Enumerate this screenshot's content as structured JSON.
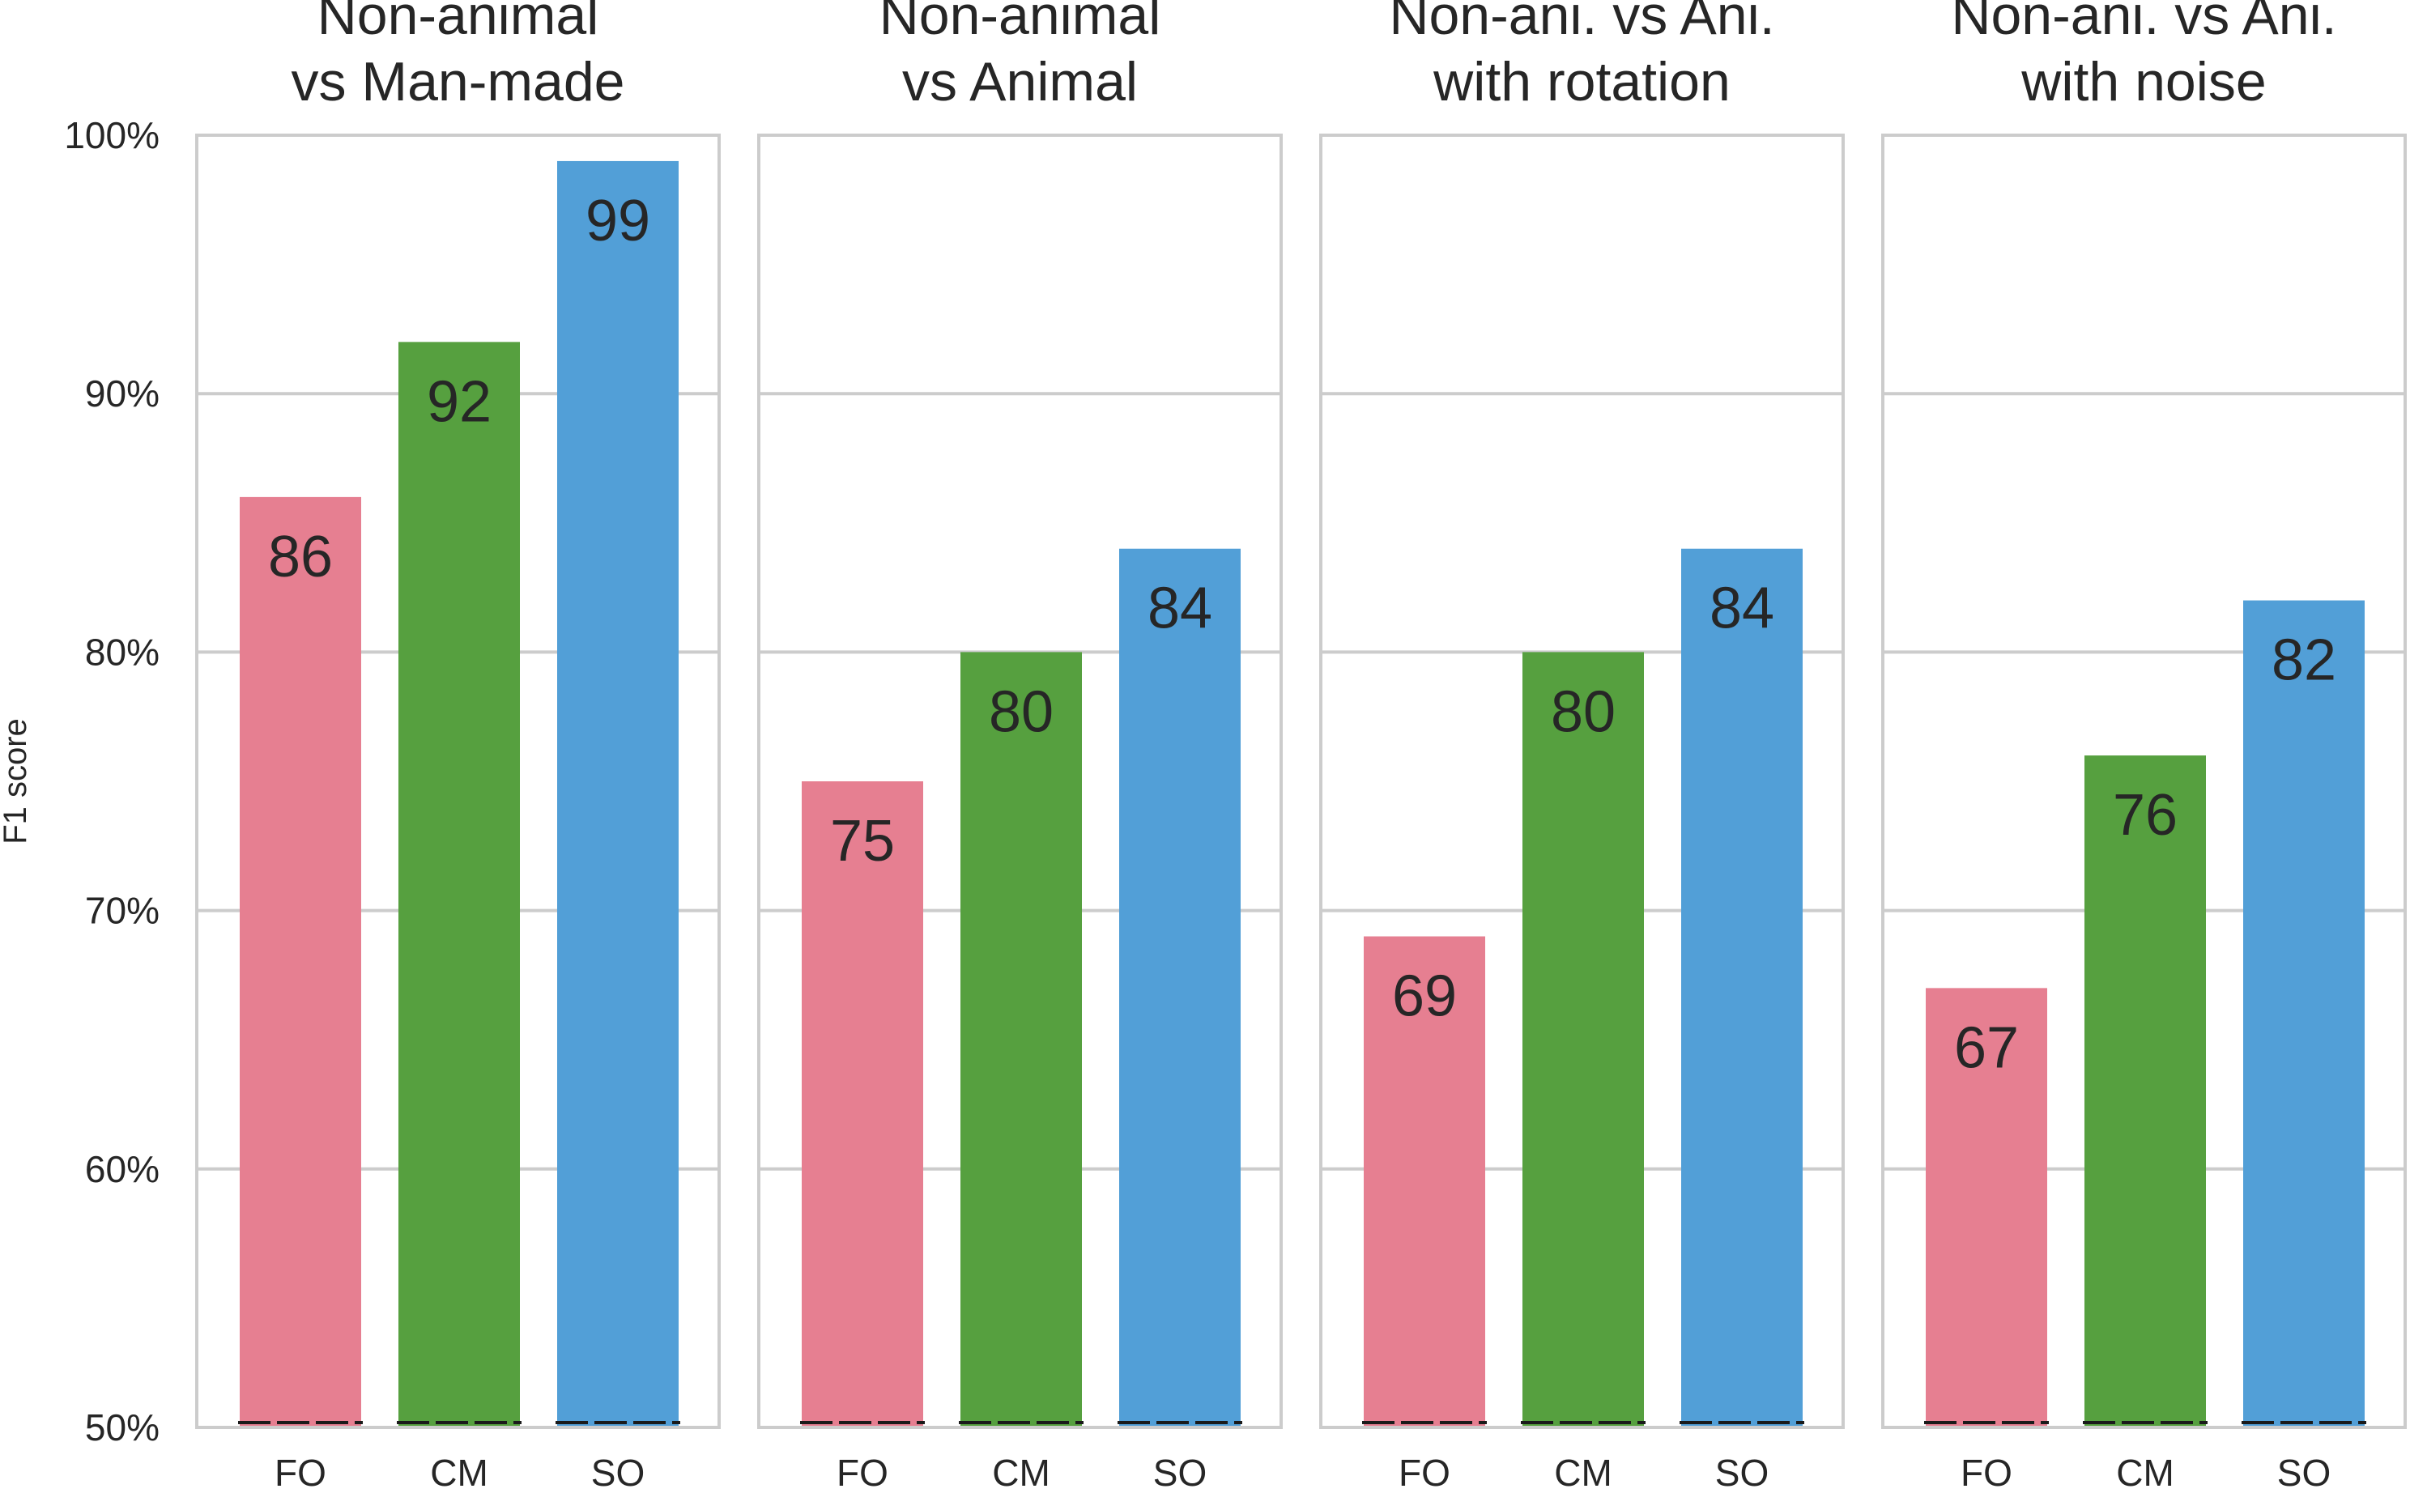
{
  "chart_data": {
    "type": "bar",
    "ylabel": "F1 score",
    "ylim": [
      50,
      100
    ],
    "yticks": [
      "50%",
      "60%",
      "70%",
      "80%",
      "90%",
      "100%"
    ],
    "grid": true,
    "categories": [
      "FO",
      "CM",
      "SO"
    ],
    "colors": [
      "#e67f91",
      "#56a03f",
      "#529fd7"
    ],
    "panels": [
      {
        "title_line1": "Non-animal",
        "title_line2": "vs Man-made",
        "values": [
          86,
          92,
          99
        ],
        "labels": [
          "86",
          "92",
          "99"
        ]
      },
      {
        "title_line1": "Non-animal",
        "title_line2": "vs Animal",
        "values": [
          75,
          80,
          84
        ],
        "labels": [
          "75",
          "80",
          "84"
        ]
      },
      {
        "title_line1": "Non-ani. vs Ani.",
        "title_line2": "with rotation",
        "values": [
          69,
          80,
          84
        ],
        "labels": [
          "69",
          "80",
          "84"
        ]
      },
      {
        "title_line1": "Non-ani. vs Ani.",
        "title_line2": "with noise",
        "values": [
          67,
          76,
          82
        ],
        "labels": [
          "67",
          "76",
          "82"
        ]
      }
    ]
  }
}
